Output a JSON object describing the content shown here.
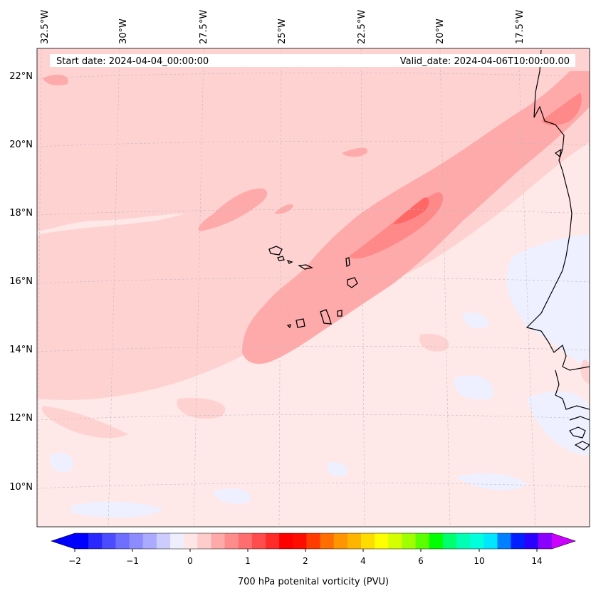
{
  "header": {
    "start_date": "Start date: 2024-04-04_00:00:00",
    "valid_date": "Valid_date: 2024-04-06T10:00:00.00"
  },
  "lon_labels": [
    "32.5°W",
    "30°W",
    "27.5°W",
    "25°W",
    "22.5°W",
    "20°W",
    "17.5°W"
  ],
  "lat_labels": [
    "22°N",
    "20°N",
    "18°N",
    "16°N",
    "14°N",
    "12°N",
    "10°N"
  ],
  "colorbar": {
    "label": "700 hPa potenital vorticity (PVU)",
    "ticks": [
      "−2",
      "−1",
      "0",
      "1",
      "2",
      "4",
      "6",
      "10",
      "14"
    ],
    "colors": [
      "#0000ff",
      "#2828ff",
      "#4c4cff",
      "#6e6eff",
      "#8c8cff",
      "#aaaaff",
      "#ccccff",
      "#eeeeff",
      "#ffe5e5",
      "#ffcccc",
      "#ffaaaa",
      "#ff8c8c",
      "#ff6e6e",
      "#ff4c4c",
      "#ff2a2a",
      "#ff0000",
      "#ff0c00",
      "#ff3c00",
      "#ff6e00",
      "#ff9600",
      "#ffb400",
      "#ffdc00",
      "#ffff00",
      "#d4ff00",
      "#a0ff00",
      "#5aff00",
      "#00ff00",
      "#00ff6e",
      "#00ffb4",
      "#00ffdc",
      "#00e6ff",
      "#0080ff",
      "#0020ff",
      "#2a00ff",
      "#8c00ff"
    ],
    "extend_min_color": "#0000ff",
    "extend_max_color": "#cc00ff"
  },
  "field_colors": {
    "background": "#ffe8e8",
    "level1": "#ffd2d2",
    "level2": "#ffaaaa",
    "level3": "#ff8888",
    "level4": "#ff6666",
    "negative": "#eef0ff"
  }
}
